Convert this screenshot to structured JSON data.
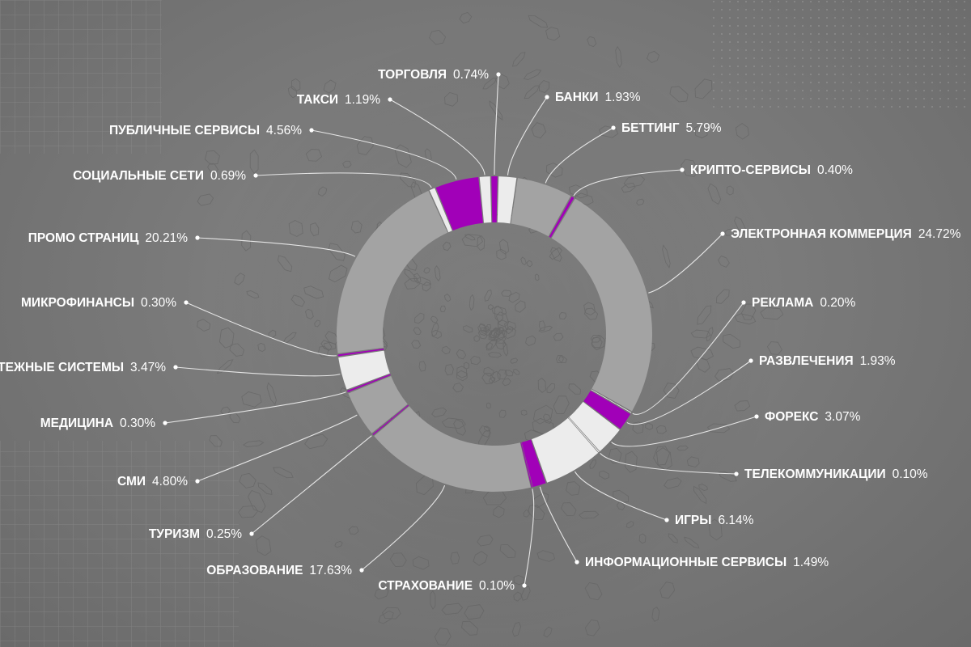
{
  "chart_data": {
    "type": "pie",
    "variant": "donut",
    "colors": {
      "gray": "#a3a3a3",
      "light": "#ececec",
      "purple": "#a100b8",
      "line": "#e6e6e6"
    },
    "slices": [
      {
        "label": "ТОРГОВЛЯ",
        "value": 0.74,
        "value_text": "0.74%",
        "color": "purple"
      },
      {
        "label": "БАНКИ",
        "value": 1.93,
        "value_text": "1.93%",
        "color": "light"
      },
      {
        "label": "БЕТТИНГ",
        "value": 5.79,
        "value_text": "5.79%",
        "color": "gray"
      },
      {
        "label": "КРИПТО-СЕРВИСЫ",
        "value": 0.4,
        "value_text": "0.40%",
        "color": "purple"
      },
      {
        "label": "ЭЛЕКТРОННАЯ КОММЕРЦИЯ",
        "value": 24.72,
        "value_text": "24.72%",
        "color": "gray"
      },
      {
        "label": "РЕКЛАМА",
        "value": 0.2,
        "value_text": "0.20%",
        "color": "light"
      },
      {
        "label": "РАЗВЛЕЧЕНИЯ",
        "value": 1.93,
        "value_text": "1.93%",
        "color": "purple"
      },
      {
        "label": "ФОРЕКС",
        "value": 3.07,
        "value_text": "3.07%",
        "color": "light"
      },
      {
        "label": "ТЕЛЕКОММУНИКАЦИИ",
        "value": 0.1,
        "value_text": "0.10%",
        "color": "light"
      },
      {
        "label": "ИГРЫ",
        "value": 6.14,
        "value_text": "6.14%",
        "color": "light"
      },
      {
        "label": "ИНФОРМАЦИОННЫЕ СЕРВИСЫ",
        "value": 1.49,
        "value_text": "1.49%",
        "color": "purple"
      },
      {
        "label": "СТРАХОВАНИЕ",
        "value": 0.1,
        "value_text": "0.10%",
        "color": "purple"
      },
      {
        "label": "ОБРАЗОВАНИЕ",
        "value": 17.63,
        "value_text": "17.63%",
        "color": "gray"
      },
      {
        "label": "ТУРИЗМ",
        "value": 0.25,
        "value_text": "0.25%",
        "color": "purple"
      },
      {
        "label": "СМИ",
        "value": 4.8,
        "value_text": "4.80%",
        "color": "gray"
      },
      {
        "label": "МЕДИЦИНА",
        "value": 0.3,
        "value_text": "0.30%",
        "color": "purple"
      },
      {
        "label": "ПЛАТЕЖНЫЕ СИСТЕМЫ",
        "value": 3.47,
        "value_text": "3.47%",
        "color": "light"
      },
      {
        "label": "МИКРОФИНАНСЫ",
        "value": 0.3,
        "value_text": "0.30%",
        "color": "purple"
      },
      {
        "label": "ПРОМО СТРАНИЦ",
        "value": 20.21,
        "value_text": "20.21%",
        "color": "gray"
      },
      {
        "label": "СОЦИАЛЬНЫЕ СЕТИ",
        "value": 0.69,
        "value_text": "0.69%",
        "color": "light"
      },
      {
        "label": "ПУБЛИЧНЫЕ СЕРВИСЫ",
        "value": 4.56,
        "value_text": "4.56%",
        "color": "purple"
      },
      {
        "label": "ТАКСИ",
        "value": 1.19,
        "value_text": "1.19%",
        "color": "light"
      }
    ]
  }
}
